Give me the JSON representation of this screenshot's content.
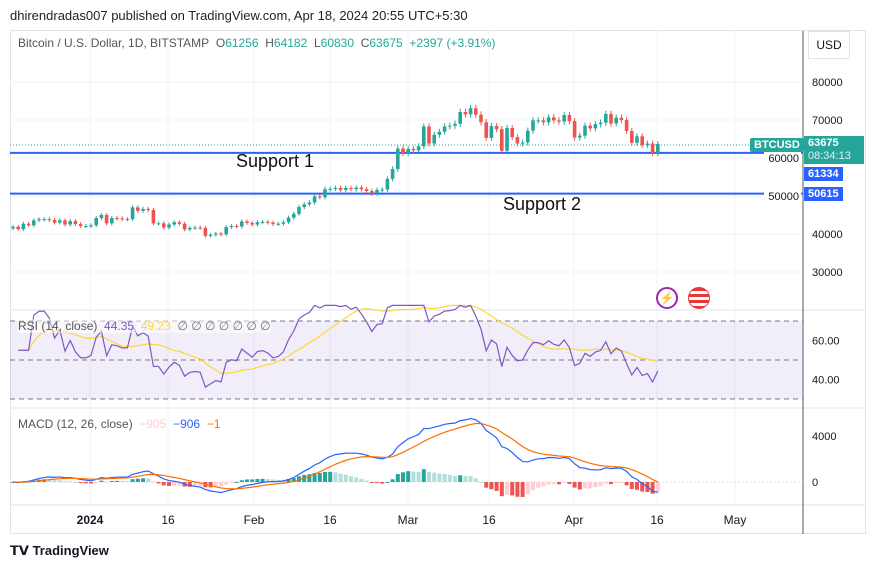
{
  "header": {
    "published": "dhirendradas007 published on TradingView.com, Apr 18, 2024 20:55 UTC+5:30"
  },
  "legend": {
    "symbol": "Bitcoin / U.S. Dollar, 1D, BITSTAMP",
    "o_label": "O",
    "o": "61256",
    "h_label": "H",
    "h": "64182",
    "l_label": "L",
    "l": "60830",
    "c_label": "C",
    "c": "63675",
    "change": "+2397 (+3.91%)"
  },
  "currency": "USD",
  "price_axis": [
    "80000",
    "70000",
    "60000",
    "50000",
    "40000",
    "30000"
  ],
  "tags": {
    "symbol": "BTCUSD",
    "last": "63675",
    "countdown": "08:34:13",
    "support1_price": "61334",
    "support2_price": "50615"
  },
  "annotations": {
    "support1": "Support 1",
    "support2": "Support 2"
  },
  "rsi": {
    "label": "RSI (14, close)",
    "value": "44.35",
    "ma": "49.23",
    "extras": "∅ ∅ ∅ ∅ ∅ ∅ ∅",
    "axis": [
      "60.00",
      "40.00"
    ]
  },
  "macd": {
    "label": "MACD (12, 26, close)",
    "hist": "−905",
    "macd": "−906",
    "signal": "−1",
    "axis": [
      "4000",
      "0"
    ]
  },
  "date_axis": [
    "2024",
    "16",
    "Feb",
    "16",
    "Mar",
    "16",
    "Apr",
    "16",
    "May"
  ],
  "footer": {
    "brand": "TradingView"
  },
  "colors": {
    "up": "#26a69a",
    "down": "#ef5350",
    "support": "#2962ff",
    "rsi": "#7e57c2",
    "rsi_ma": "#fdd835",
    "macd": "#2962ff",
    "signal": "#ff6d00"
  },
  "chart_data": {
    "type": "candlestick",
    "title": "Bitcoin / U.S. Dollar, 1D, BITSTAMP",
    "start_date": "2023-12-16",
    "ylim": [
      20000,
      90000
    ],
    "support_levels": [
      61334,
      50615
    ],
    "closes": [
      41900,
      41300,
      42700,
      42300,
      43600,
      43900,
      43900,
      43700,
      43000,
      43600,
      42500,
      43400,
      42600,
      42100,
      42100,
      42300,
      44200,
      45000,
      42800,
      44200,
      44100,
      43900,
      43900,
      47000,
      46100,
      46600,
      46300,
      42800,
      42800,
      41700,
      42500,
      43100,
      42700,
      41200,
      41600,
      41700,
      41600,
      39500,
      39800,
      40100,
      39900,
      41800,
      42100,
      42000,
      43300,
      42900,
      42500,
      43100,
      43200,
      43000,
      42600,
      42700,
      43100,
      44300,
      45300,
      47100,
      47800,
      48300,
      49900,
      49700,
      51800,
      51900,
      52100,
      51600,
      52100,
      51800,
      52200,
      51800,
      51300,
      50700,
      51600,
      51700,
      54500,
      57100,
      62500,
      61200,
      62400,
      62000,
      63100,
      68300,
      63800,
      66100,
      66900,
      68300,
      68500,
      69000,
      72100,
      71500,
      73100,
      71400,
      69400,
      65300,
      68400,
      67600,
      61900,
      67900,
      65500,
      63800,
      64100,
      67200,
      69900,
      69900,
      69400,
      70700,
      69900,
      69600,
      71300,
      69700,
      65400,
      65900,
      68500,
      67800,
      68900,
      69300,
      71600,
      69100,
      70600,
      70000,
      67100,
      64000,
      65700,
      63400,
      63800,
      61256,
      63675
    ]
  }
}
